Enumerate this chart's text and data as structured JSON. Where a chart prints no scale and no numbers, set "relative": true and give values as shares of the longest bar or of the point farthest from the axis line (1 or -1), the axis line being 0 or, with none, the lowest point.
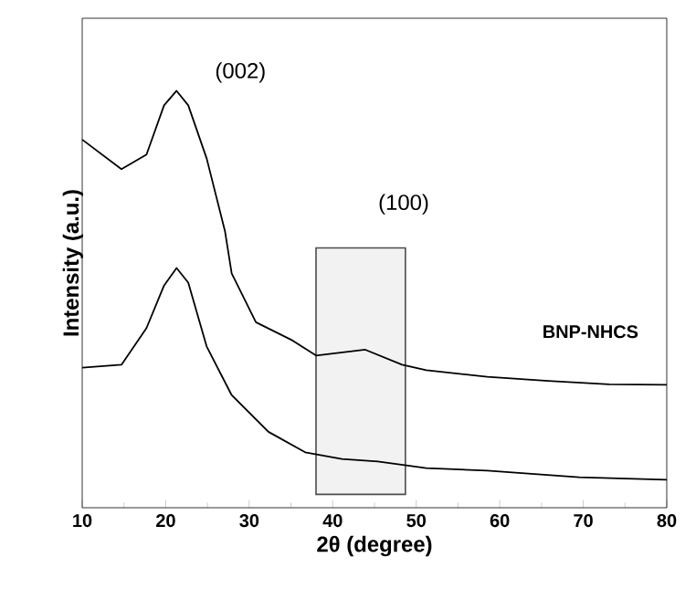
{
  "chart_data": {
    "type": "line",
    "relative": true,
    "xlabel": "2θ (degree)",
    "ylabel": "Intensity (a.u.)",
    "xlim": [
      10,
      80
    ],
    "xticks": [
      10,
      20,
      30,
      40,
      50,
      60,
      70,
      80
    ],
    "tick_labels": "x",
    "series": [
      {
        "name": "BNP-NHCS",
        "color": "#000000",
        "x": [
          10,
          14.7,
          17.7,
          19.8,
          21.3,
          22.7,
          24.9,
          27.1,
          27.9,
          30.8,
          35.2,
          38,
          43.9,
          48.3,
          51.2,
          58.5,
          65.8,
          73.1,
          80
        ],
        "values": [
          0.883,
          0.812,
          0.847,
          0.965,
          1.0,
          0.965,
          0.838,
          0.663,
          0.562,
          0.445,
          0.401,
          0.365,
          0.379,
          0.343,
          0.33,
          0.314,
          0.304,
          0.296,
          0.295
        ]
      },
      {
        "color": "#000000",
        "x": [
          10,
          14.7,
          17.7,
          19.8,
          21.3,
          22.7,
          24.9,
          27.9,
          32.3,
          36.7,
          41.1,
          45.4,
          51.2,
          58.5,
          69.5,
          80
        ],
        "values": [
          0.336,
          0.343,
          0.431,
          0.533,
          0.575,
          0.54,
          0.387,
          0.27,
          0.182,
          0.133,
          0.117,
          0.111,
          0.095,
          0.089,
          0.073,
          0.067
        ]
      }
    ],
    "bands": [
      {
        "axis": "x",
        "from": 38,
        "to": 48.7,
        "color": "#f2f2f2"
      }
    ],
    "annotations": [
      {
        "text": "(002)",
        "x": 21.3,
        "y": 1.0
      },
      "(100)"
    ]
  }
}
